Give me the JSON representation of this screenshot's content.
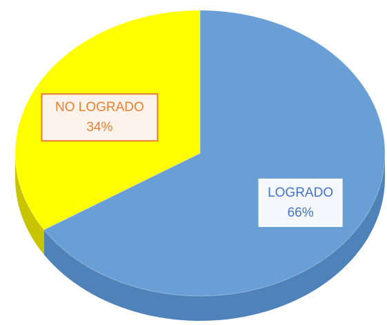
{
  "chart_data": {
    "type": "pie",
    "categories": [
      "LOGRADO",
      "NO LOGRADO"
    ],
    "values": [
      66,
      34
    ],
    "value_labels": [
      "66%",
      "34%"
    ],
    "colors": [
      "#6a9fd6",
      "#ffff00"
    ],
    "side_colors": [
      "#4f82b8",
      "#c9c400"
    ],
    "label_colors": [
      "#4472c4",
      "#ed7d31"
    ],
    "label_borders": [
      "#ffffff",
      "#ed7d31"
    ],
    "label_fills": [
      "#f4f8fc",
      "#fdf3ea"
    ]
  }
}
